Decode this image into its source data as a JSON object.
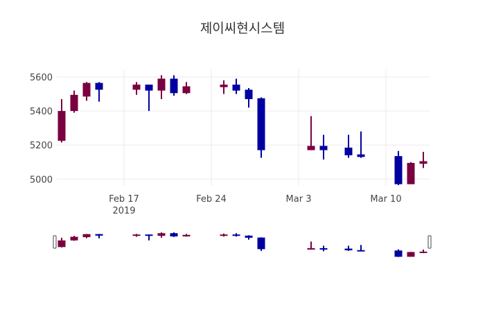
{
  "title": "제이씨현시스템",
  "colors": {
    "increasing": "#7a0040",
    "decreasing": "#0000a0",
    "grid": "#ebebeb"
  },
  "chart_data": {
    "type": "candlestick",
    "title": "제이씨현시스템",
    "xlabel": "",
    "ylabel": "",
    "ylim": [
      4940,
      5650
    ],
    "yticks": [
      5000,
      5200,
      5400,
      5600
    ],
    "xticks": [
      {
        "label": "Feb 17",
        "sublabel": "2019",
        "date": "2019-02-17"
      },
      {
        "label": "Feb 24",
        "sublabel": "",
        "date": "2019-02-24"
      },
      {
        "label": "Mar 3",
        "sublabel": "",
        "date": "2019-03-03"
      },
      {
        "label": "Mar 10",
        "sublabel": "",
        "date": "2019-03-10"
      }
    ],
    "grid": true,
    "rangeslider": true,
    "series": [
      {
        "date": "2019-02-12",
        "open": 5225,
        "high": 5470,
        "low": 5215,
        "close": 5400
      },
      {
        "date": "2019-02-13",
        "open": 5400,
        "high": 5520,
        "low": 5390,
        "close": 5495
      },
      {
        "date": "2019-02-14",
        "open": 5485,
        "high": 5570,
        "low": 5460,
        "close": 5565
      },
      {
        "date": "2019-02-15",
        "open": 5565,
        "high": 5570,
        "low": 5455,
        "close": 5525
      },
      {
        "date": "2019-02-18",
        "open": 5525,
        "high": 5570,
        "low": 5495,
        "close": 5555
      },
      {
        "date": "2019-02-19",
        "open": 5555,
        "high": 5555,
        "low": 5400,
        "close": 5520
      },
      {
        "date": "2019-02-20",
        "open": 5520,
        "high": 5610,
        "low": 5470,
        "close": 5590
      },
      {
        "date": "2019-02-21",
        "open": 5590,
        "high": 5610,
        "low": 5490,
        "close": 5505
      },
      {
        "date": "2019-02-22",
        "open": 5505,
        "high": 5570,
        "low": 5500,
        "close": 5545
      },
      {
        "date": "2019-02-25",
        "open": 5540,
        "high": 5580,
        "low": 5500,
        "close": 5555
      },
      {
        "date": "2019-02-26",
        "open": 5555,
        "high": 5590,
        "low": 5500,
        "close": 5520
      },
      {
        "date": "2019-02-27",
        "open": 5525,
        "high": 5535,
        "low": 5420,
        "close": 5470
      },
      {
        "date": "2019-02-28",
        "open": 5475,
        "high": 5480,
        "low": 5125,
        "close": 5170
      },
      {
        "date": "2019-03-04",
        "open": 5170,
        "high": 5370,
        "low": 5170,
        "close": 5195
      },
      {
        "date": "2019-03-05",
        "open": 5195,
        "high": 5260,
        "low": 5115,
        "close": 5170
      },
      {
        "date": "2019-03-07",
        "open": 5185,
        "high": 5260,
        "low": 5125,
        "close": 5140
      },
      {
        "date": "2019-03-08",
        "open": 5145,
        "high": 5280,
        "low": 5125,
        "close": 5130
      },
      {
        "date": "2019-03-11",
        "open": 5135,
        "high": 5165,
        "low": 4965,
        "close": 4970
      },
      {
        "date": "2019-03-12",
        "open": 4970,
        "high": 5100,
        "low": 4970,
        "close": 5095
      },
      {
        "date": "2019-03-13",
        "open": 5090,
        "high": 5160,
        "low": 5065,
        "close": 5105
      }
    ]
  }
}
